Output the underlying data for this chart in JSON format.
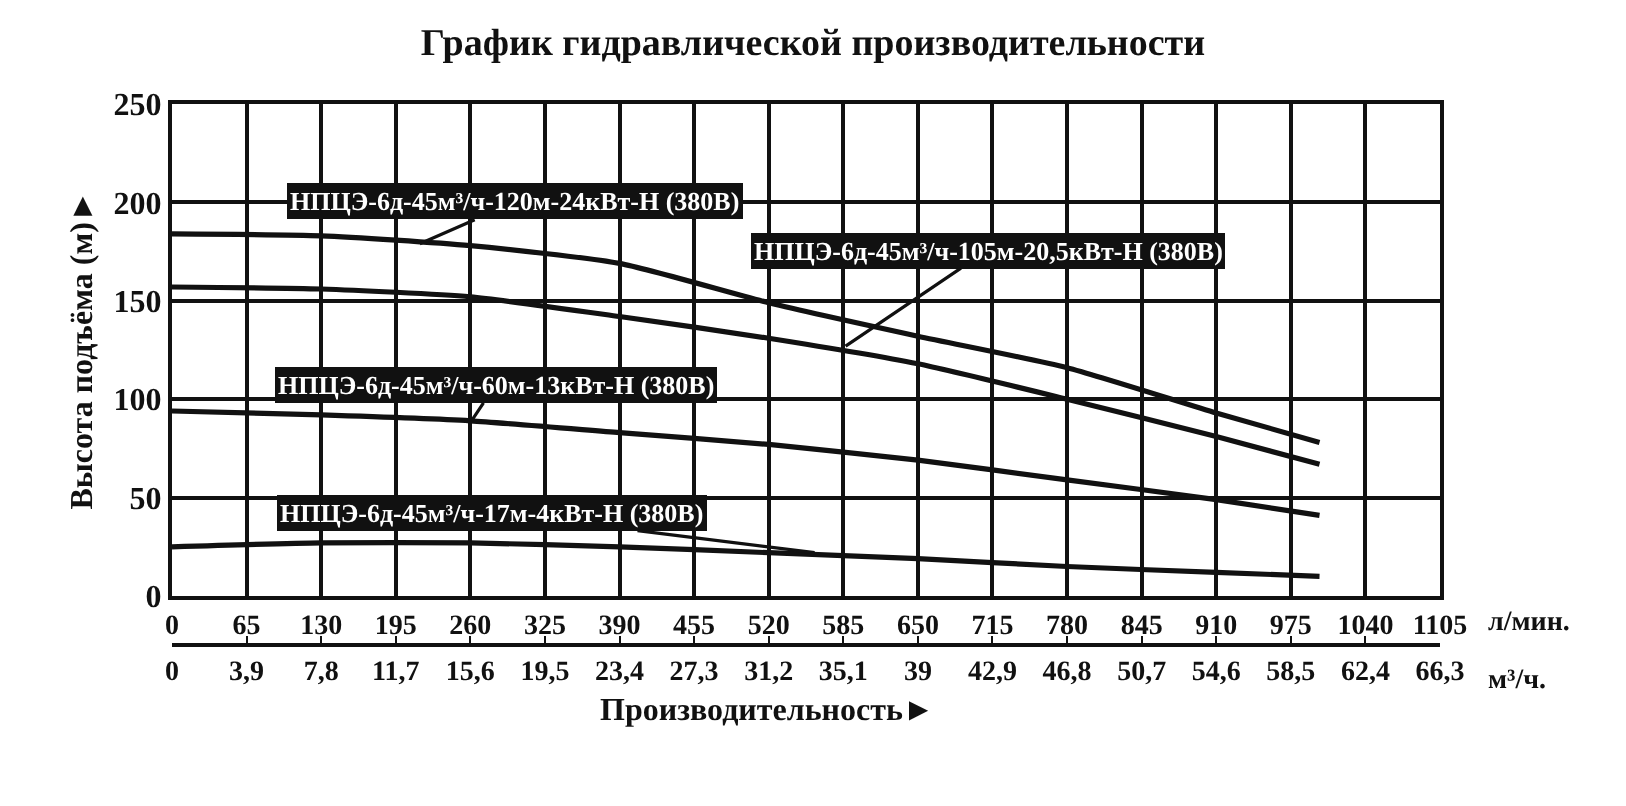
{
  "chart_data": {
    "type": "line",
    "title": "График гидравлической производительности",
    "xlabel": "Производительность►",
    "ylabel": "Высота подъёма (м)►",
    "x": [
      0,
      130,
      260,
      390,
      520,
      650,
      780,
      910,
      1000
    ],
    "series": [
      {
        "name": "НПЦЭ-6д-45м³/ч-120м-24кВт-Н (380В)",
        "color": "#111111",
        "values": [
          184,
          183,
          178,
          169,
          149,
          132,
          116,
          93,
          78
        ]
      },
      {
        "name": "НПЦЭ-6д-45м³/ч-105м-20,5кВт-Н (380В)",
        "color": "#111111",
        "values": [
          157,
          156,
          152,
          142,
          131,
          118,
          100,
          81,
          67
        ]
      },
      {
        "name": "НПЦЭ-6д-45м³/ч-60м-13кВт-Н (380В)",
        "color": "#111111",
        "values": [
          94,
          92,
          89,
          83,
          77,
          69,
          59,
          49,
          41
        ]
      },
      {
        "name": "НПЦЭ-6д-45м³/ч-17м-4кВт-Н (380В)",
        "color": "#111111",
        "values": [
          25,
          27,
          27,
          25,
          22,
          19,
          15,
          12,
          10
        ]
      }
    ],
    "xlim": [
      0,
      1105
    ],
    "xticks": [
      0,
      65,
      130,
      195,
      260,
      325,
      390,
      455,
      520,
      585,
      650,
      715,
      780,
      845,
      910,
      975,
      1040,
      1105
    ],
    "x2lim": [
      0,
      66.3
    ],
    "x2ticks": [
      0,
      {
        "value": 3.9,
        "label": "3,9"
      },
      {
        "value": 7.8,
        "label": "7,8"
      },
      {
        "value": 11.7,
        "label": "11,7"
      },
      {
        "value": 15.6,
        "label": "15,6"
      },
      {
        "value": 19.5,
        "label": "19,5"
      },
      {
        "value": 23.4,
        "label": "23,4"
      },
      {
        "value": 27.3,
        "label": "27,3"
      },
      {
        "value": 31.2,
        "label": "31,2"
      },
      {
        "value": 35.1,
        "label": "35,1"
      },
      39,
      {
        "value": 42.9,
        "label": "42,9"
      },
      {
        "value": 46.8,
        "label": "46,8"
      },
      {
        "value": 50.7,
        "label": "50,7"
      },
      {
        "value": 54.6,
        "label": "54,6"
      },
      {
        "value": 58.5,
        "label": "58,5"
      },
      {
        "value": 62.4,
        "label": "62,4"
      },
      {
        "value": 66.3,
        "label": "66,3"
      }
    ],
    "ylim": [
      0,
      250
    ],
    "yticks": [
      0,
      50,
      100,
      150,
      200,
      250
    ],
    "annotations": [
      "л/мин.",
      "м³/ч."
    ],
    "grid": true,
    "line_style": "solid",
    "marker": "none"
  }
}
